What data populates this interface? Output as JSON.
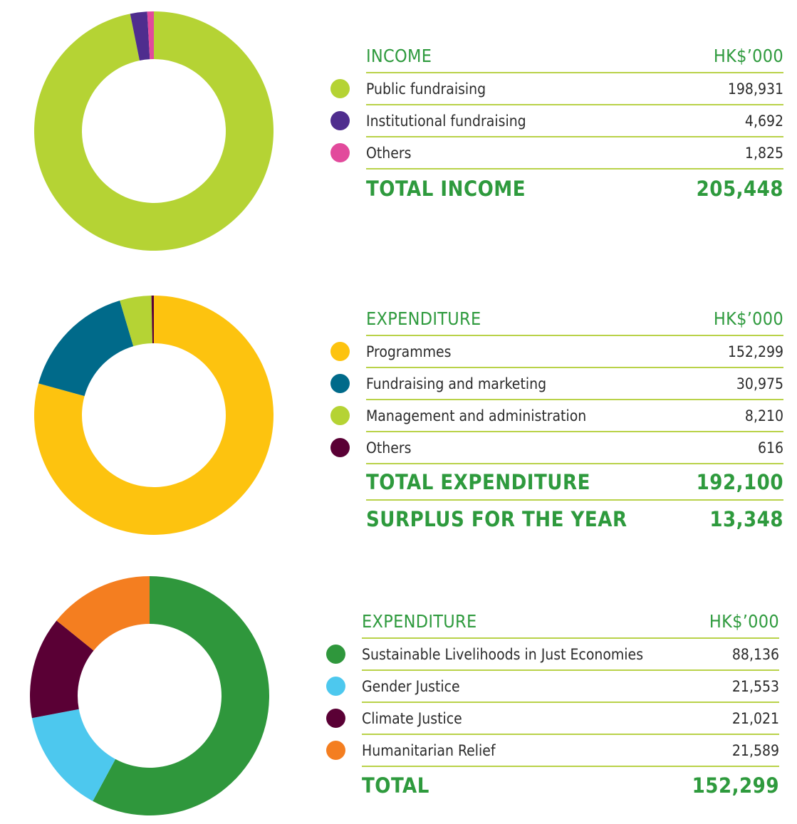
{
  "colors": {
    "accent_green": "#2e9a3d",
    "rule_green": "#b9d249"
  },
  "tables": [
    {
      "header": {
        "label": "INCOME",
        "unit": "HK$’000"
      },
      "items": [
        {
          "label": "Public fundraising",
          "value": "198,931",
          "color": "#b5d334"
        },
        {
          "label": "Institutional fundraising",
          "value": "4,692",
          "color": "#4f2d8e"
        },
        {
          "label": "Others",
          "value": "1,825",
          "color": "#e24a9c"
        }
      ],
      "totals": [
        {
          "label": "TOTAL INCOME",
          "value": "205,448"
        }
      ]
    },
    {
      "header": {
        "label": "EXPENDITURE",
        "unit": "HK$’000"
      },
      "items": [
        {
          "label": "Programmes",
          "value": "152,299",
          "color": "#fdc30f"
        },
        {
          "label": "Fundraising and marketing",
          "value": "30,975",
          "color": "#006a8a"
        },
        {
          "label": "Management and administration",
          "value": "8,210",
          "color": "#b5d334"
        },
        {
          "label": "Others",
          "value": "616",
          "color": "#5a0035"
        }
      ],
      "totals": [
        {
          "label": "TOTAL EXPENDITURE",
          "value": "192,100"
        },
        {
          "label": "SURPLUS FOR THE YEAR",
          "value": "13,348"
        }
      ]
    },
    {
      "header": {
        "label": "EXPENDITURE",
        "unit": "HK$’000"
      },
      "items": [
        {
          "label": "Sustainable Livelihoods in Just Economies",
          "value": "88,136",
          "color": "#2f973c"
        },
        {
          "label": "Gender Justice",
          "value": "21,553",
          "color": "#4dc8ee"
        },
        {
          "label": "Climate Justice",
          "value": "21,021",
          "color": "#5a0035"
        },
        {
          "label": "Humanitarian Relief",
          "value": "21,589",
          "color": "#f47e20"
        }
      ],
      "totals": [
        {
          "label": "TOTAL",
          "value": "152,299"
        }
      ]
    }
  ],
  "chart_data": [
    {
      "type": "pie",
      "categories": [
        "Public fundraising",
        "Institutional fundraising",
        "Others"
      ],
      "values": [
        198931,
        4692,
        1825
      ],
      "colors": [
        "#b5d334",
        "#4f2d8e",
        "#e24a9c"
      ]
    },
    {
      "type": "pie",
      "categories": [
        "Programmes",
        "Fundraising and marketing",
        "Management and administration",
        "Others"
      ],
      "values": [
        152299,
        30975,
        8210,
        616
      ],
      "colors": [
        "#fdc30f",
        "#006a8a",
        "#b5d334",
        "#5a0035"
      ]
    },
    {
      "type": "pie",
      "categories": [
        "Sustainable Livelihoods in Just Economies",
        "Gender Justice",
        "Climate Justice",
        "Humanitarian Relief"
      ],
      "values": [
        88136,
        21553,
        21021,
        21589
      ],
      "colors": [
        "#2f973c",
        "#4dc8ee",
        "#5a0035",
        "#f47e20"
      ]
    }
  ]
}
